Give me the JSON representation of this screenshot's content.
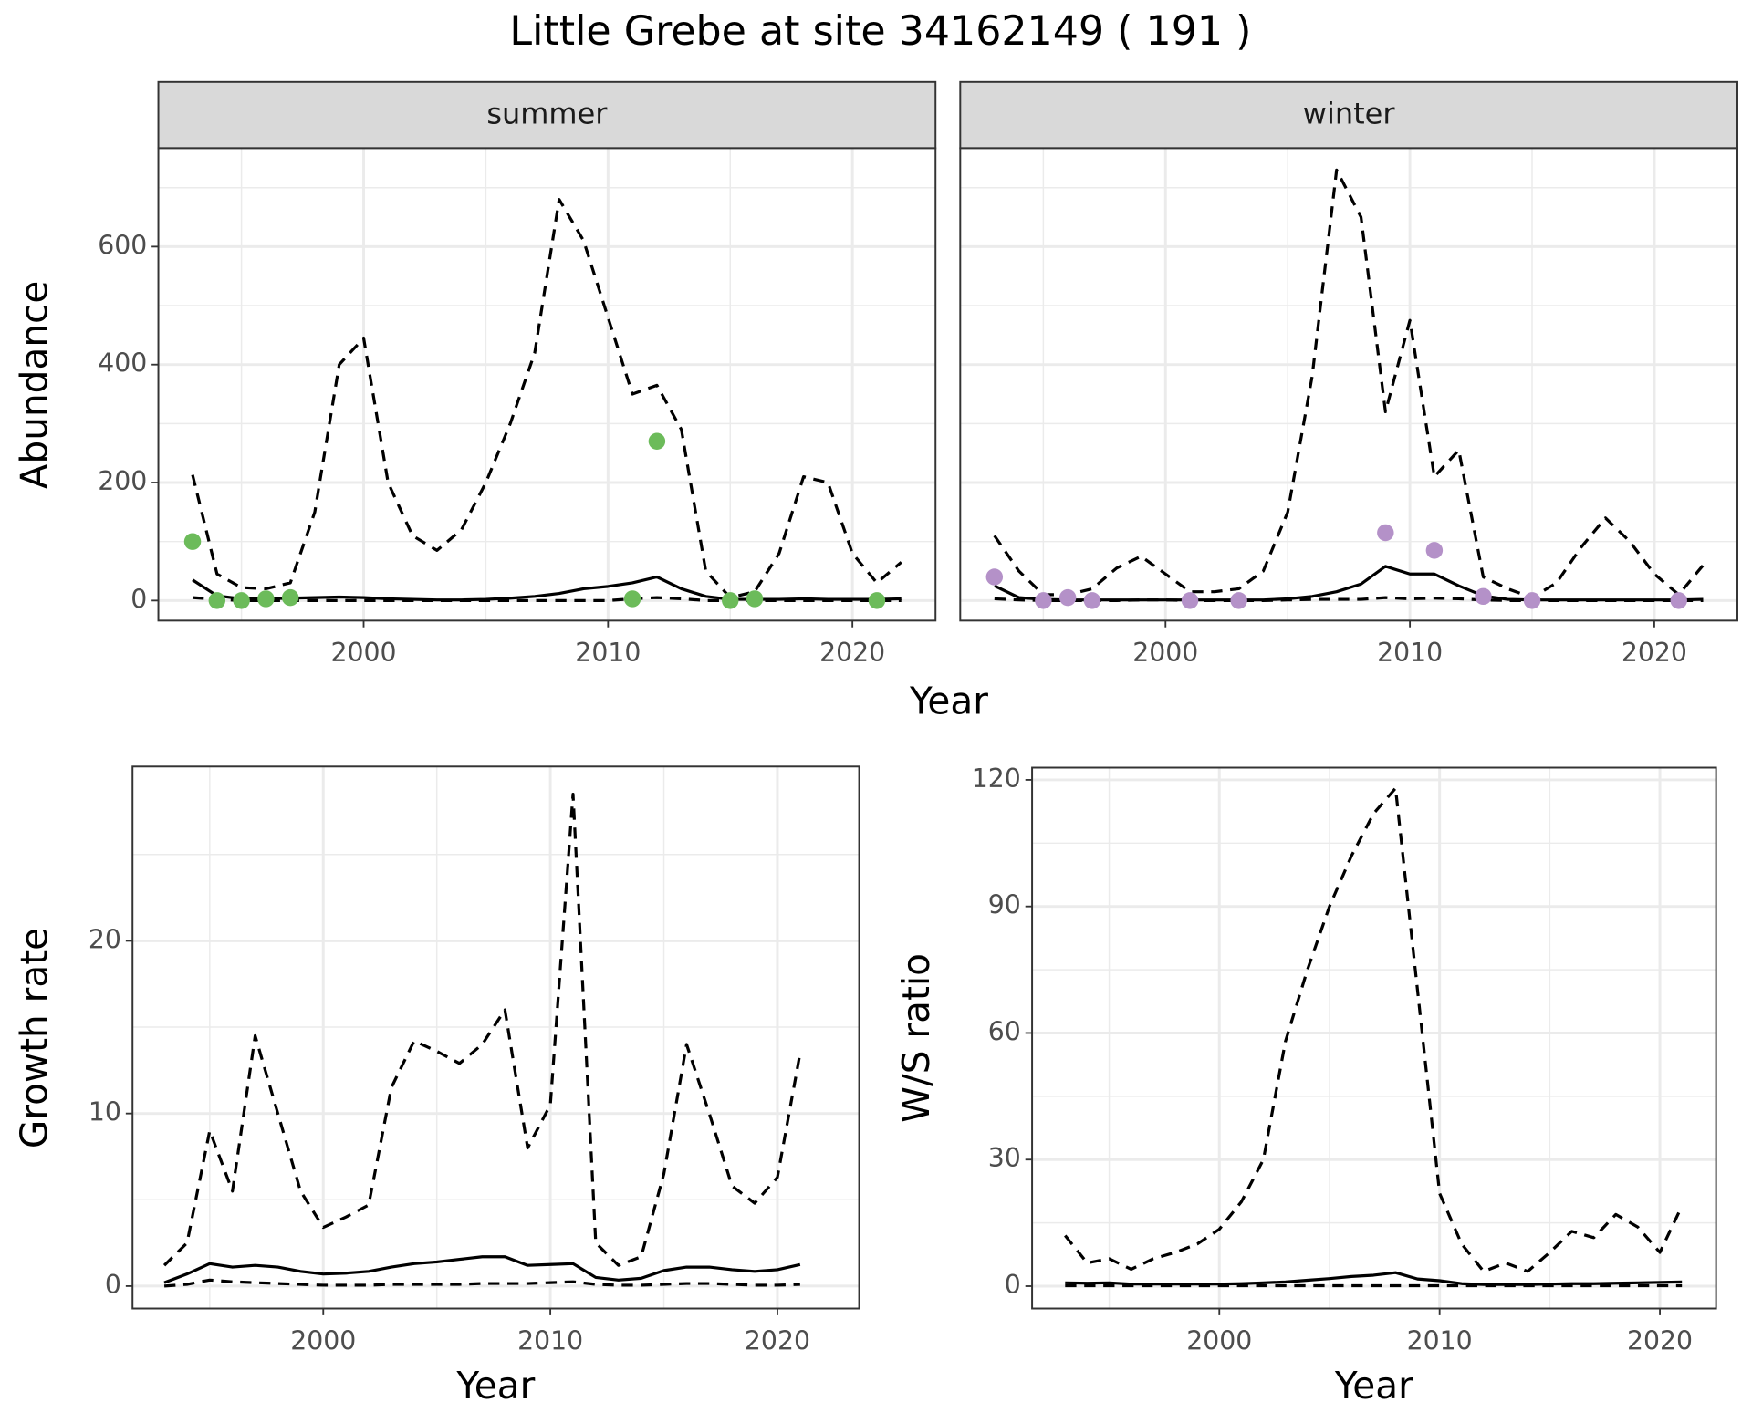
{
  "title": "Little Grebe at site 34162149 ( 191 )",
  "chart_data": [
    {
      "type": "line",
      "xlabel": "Year",
      "ylabel": "Abundance",
      "xlim": [
        1991.6,
        2023.4
      ],
      "xticks": [
        2000,
        2010,
        2020
      ],
      "minor_xticks": [
        1995,
        2005,
        2015
      ],
      "ylim": [
        -34,
        767
      ],
      "yticks": [
        0,
        200,
        400,
        600
      ],
      "minor_yticks": [
        100,
        300,
        500,
        700
      ],
      "grid": true,
      "facets": [
        {
          "label": "summer",
          "x": [
            1993,
            1994,
            1995,
            1996,
            1997,
            1998,
            1999,
            2000,
            2001,
            2002,
            2003,
            2004,
            2005,
            2006,
            2007,
            2008,
            2009,
            2010,
            2011,
            2012,
            2013,
            2014,
            2015,
            2016,
            2017,
            2018,
            2019,
            2020,
            2021,
            2022
          ],
          "series": [
            {
              "color": "#000000",
              "dash": true,
              "values": [
                213,
                45,
                22,
                20,
                30,
                150,
                400,
                445,
                200,
                110,
                85,
                120,
                200,
                300,
                420,
                680,
                610,
                480,
                350,
                365,
                290,
                50,
                5,
                15,
                80,
                210,
                200,
                80,
                30,
                65
              ]
            },
            {
              "color": "#000000",
              "dash": true,
              "values": [
                5,
                2,
                0,
                0,
                0,
                0,
                0,
                0,
                0,
                0,
                0,
                0,
                0,
                0,
                0,
                0,
                0,
                0,
                3,
                5,
                3,
                0,
                0,
                0,
                0,
                0,
                0,
                0,
                0,
                0
              ]
            },
            {
              "color": "#000000",
              "dash": false,
              "values": [
                35,
                8,
                3,
                3,
                4,
                5,
                6,
                5,
                3,
                2,
                1,
                1,
                2,
                4,
                7,
                12,
                20,
                24,
                30,
                40,
                20,
                7,
                2,
                2,
                2,
                3,
                2,
                2,
                2,
                3
              ]
            },
            {
              "mark": "point",
              "color": "#6cbb5a",
              "x": [
                1993,
                1994,
                1995,
                1996,
                1997,
                2011,
                2012,
                2015,
                2016,
                2021
              ],
              "values": [
                100,
                0,
                0,
                3,
                5,
                3,
                270,
                0,
                3,
                0
              ]
            }
          ]
        },
        {
          "label": "winter",
          "x": [
            1993,
            1994,
            1995,
            1996,
            1997,
            1998,
            1999,
            2000,
            2001,
            2002,
            2003,
            2004,
            2005,
            2006,
            2007,
            2008,
            2009,
            2010,
            2011,
            2012,
            2013,
            2014,
            2015,
            2016,
            2017,
            2018,
            2019,
            2020,
            2021,
            2022
          ],
          "series": [
            {
              "color": "#000000",
              "dash": true,
              "values": [
                110,
                50,
                10,
                10,
                20,
                55,
                75,
                45,
                15,
                15,
                20,
                50,
                150,
                380,
                730,
                650,
                320,
                475,
                210,
                255,
                40,
                20,
                5,
                30,
                90,
                140,
                100,
                45,
                10,
                60
              ]
            },
            {
              "color": "#000000",
              "dash": true,
              "values": [
                3,
                1,
                0,
                0,
                0,
                0,
                1,
                1,
                0,
                0,
                0,
                0,
                1,
                2,
                2,
                2,
                5,
                3,
                4,
                3,
                1,
                0,
                0,
                0,
                0,
                0,
                0,
                0,
                0,
                0
              ]
            },
            {
              "color": "#000000",
              "dash": false,
              "values": [
                25,
                5,
                2,
                1,
                1,
                1,
                1,
                1,
                1,
                1,
                1,
                1,
                3,
                7,
                15,
                28,
                58,
                45,
                45,
                25,
                8,
                2,
                1,
                1,
                1,
                1,
                1,
                1,
                1,
                2
              ]
            },
            {
              "mark": "point",
              "color": "#b491c8",
              "x": [
                1993,
                1995,
                1996,
                1997,
                2001,
                2003,
                2009,
                2011,
                2013,
                2015,
                2021
              ],
              "values": [
                40,
                0,
                5,
                0,
                0,
                0,
                115,
                85,
                7,
                0,
                0
              ]
            }
          ]
        }
      ]
    },
    {
      "type": "line",
      "xlabel": "Year",
      "ylabel": "Growth rate",
      "xlim": [
        1991.6,
        2023.6
      ],
      "xticks": [
        2000,
        2010,
        2020
      ],
      "minor_xticks": [
        1995,
        2005,
        2015
      ],
      "ylim": [
        -1.3,
        30.1
      ],
      "yticks": [
        0,
        10,
        20
      ],
      "minor_yticks": [
        5,
        15,
        25
      ],
      "grid": true,
      "x": [
        1993,
        1994,
        1995,
        1996,
        1997,
        1998,
        1999,
        2000,
        2001,
        2002,
        2003,
        2004,
        2005,
        2006,
        2007,
        2008,
        2009,
        2010,
        2011,
        2012,
        2013,
        2014,
        2015,
        2016,
        2017,
        2018,
        2019,
        2020,
        2021
      ],
      "series": [
        {
          "color": "#000000",
          "dash": true,
          "values": [
            1.2,
            2.5,
            9,
            5.5,
            14.5,
            10,
            5.5,
            3.4,
            4,
            4.7,
            11.5,
            14.2,
            13.6,
            12.9,
            14,
            16,
            8,
            10.5,
            28.5,
            2.5,
            1.2,
            1.7,
            6.5,
            14,
            10,
            5.8,
            4.8,
            6.3,
            13.5
          ]
        },
        {
          "color": "#000000",
          "dash": true,
          "values": [
            0,
            0.1,
            0.35,
            0.25,
            0.2,
            0.15,
            0.1,
            0.05,
            0.05,
            0.05,
            0.1,
            0.1,
            0.1,
            0.1,
            0.15,
            0.15,
            0.15,
            0.2,
            0.25,
            0.1,
            0.05,
            0.05,
            0.1,
            0.15,
            0.15,
            0.1,
            0.05,
            0.05,
            0.1
          ]
        },
        {
          "color": "#000000",
          "dash": false,
          "values": [
            0.2,
            0.7,
            1.3,
            1.1,
            1.2,
            1.1,
            0.85,
            0.7,
            0.75,
            0.85,
            1.1,
            1.3,
            1.4,
            1.55,
            1.7,
            1.7,
            1.2,
            1.25,
            1.3,
            0.5,
            0.35,
            0.45,
            0.9,
            1.1,
            1.1,
            0.95,
            0.85,
            0.95,
            1.25
          ]
        }
      ]
    },
    {
      "type": "line",
      "xlabel": "Year",
      "ylabel": "W/S ratio",
      "xlim": [
        1991.5,
        2022.55
      ],
      "xticks": [
        2000,
        2010,
        2020
      ],
      "minor_xticks": [
        1995,
        2005,
        2015
      ],
      "ylim": [
        -5.3,
        122.9
      ],
      "yticks": [
        0,
        30,
        60,
        90,
        120
      ],
      "minor_yticks": [
        15,
        45,
        75,
        105
      ],
      "grid": true,
      "x": [
        1993,
        1994,
        1995,
        1996,
        1997,
        1998,
        1999,
        2000,
        2001,
        2002,
        2003,
        2004,
        2005,
        2006,
        2007,
        2008,
        2009,
        2010,
        2011,
        2012,
        2013,
        2014,
        2015,
        2016,
        2017,
        2018,
        2019,
        2020,
        2021
      ],
      "series": [
        {
          "color": "#000000",
          "dash": true,
          "values": [
            12,
            5.5,
            6.5,
            4,
            6.5,
            8,
            10,
            13.5,
            20,
            30,
            58,
            75,
            90,
            102,
            112,
            118,
            70,
            22,
            10,
            3.5,
            5.5,
            3.5,
            8,
            13,
            11.5,
            17,
            14,
            8,
            19
          ]
        },
        {
          "color": "#000000",
          "dash": true,
          "values": [
            0.1,
            0.1,
            0.1,
            0.1,
            0.1,
            0.1,
            0.1,
            0.1,
            0.1,
            0.1,
            0.1,
            0.1,
            0.1,
            0.1,
            0.1,
            0.1,
            0.1,
            0.1,
            0.1,
            0.1,
            0.1,
            0.1,
            0.1,
            0.1,
            0.1,
            0.1,
            0.1,
            0.1,
            0.1
          ]
        },
        {
          "color": "#000000",
          "dash": false,
          "values": [
            0.8,
            0.7,
            0.8,
            0.5,
            0.5,
            0.5,
            0.5,
            0.5,
            0.6,
            0.8,
            1,
            1.4,
            1.8,
            2.3,
            2.6,
            3.2,
            1.7,
            1.3,
            0.6,
            0.4,
            0.4,
            0.4,
            0.5,
            0.6,
            0.6,
            0.7,
            0.8,
            0.9,
            1
          ]
        }
      ]
    }
  ]
}
